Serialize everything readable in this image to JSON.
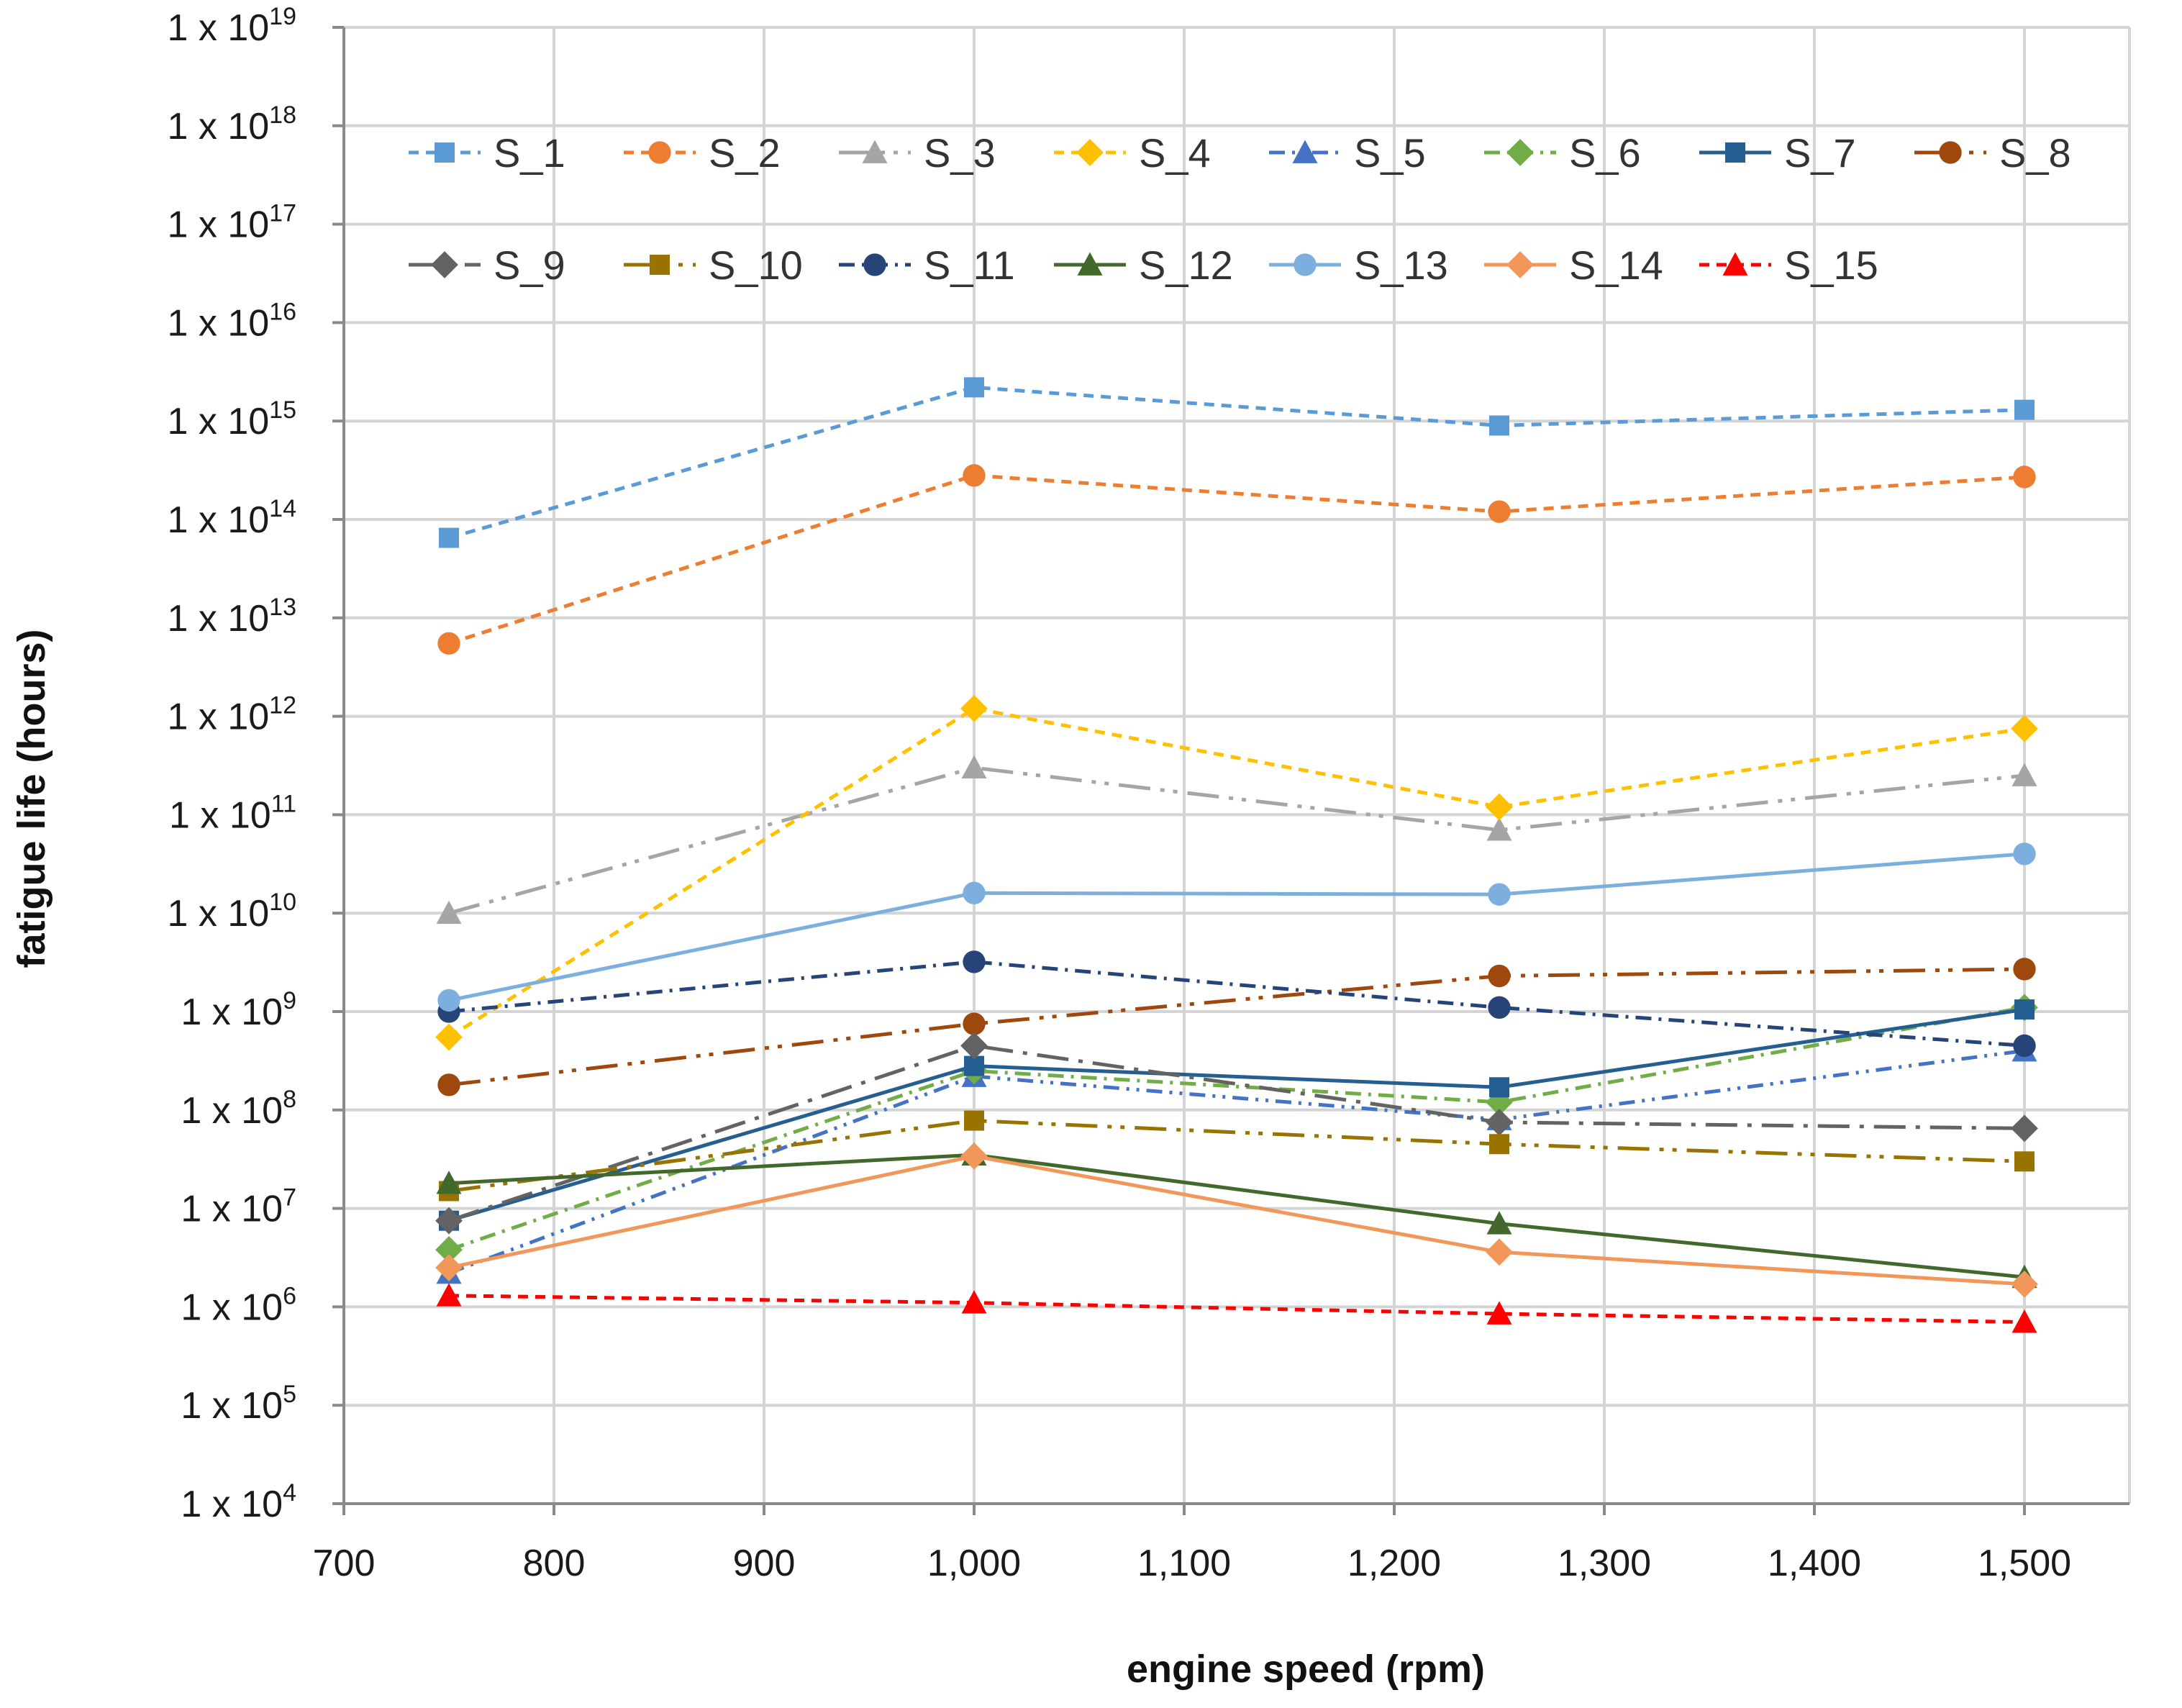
{
  "chart_data": {
    "type": "line",
    "title": "",
    "xlabel": "engine speed (rpm)",
    "ylabel": "fatigue life (hours)",
    "yscale": "log",
    "x": [
      750,
      1000,
      1250,
      1500
    ],
    "xlim": [
      700,
      1550
    ],
    "xticks": [
      700,
      800,
      900,
      1000,
      1100,
      1200,
      1300,
      1400,
      1500
    ],
    "xtick_labels": [
      "700",
      "800",
      "900",
      "1,000",
      "1,100",
      "1,200",
      "1,300",
      "1,400",
      "1,500"
    ],
    "ylim_exponent": [
      4,
      19
    ],
    "ytick_exponents": [
      4,
      5,
      6,
      7,
      8,
      9,
      10,
      11,
      12,
      13,
      14,
      15,
      16,
      17,
      18,
      19
    ],
    "ytick_prefix": "1 x 10",
    "legend_position": "top, inside plot, two rows",
    "series": [
      {
        "name": "S_1",
        "values": [
          65000000000000.0,
          2200000000000000.0,
          900000000000000.0,
          1300000000000000.0
        ],
        "color": "#5B9BD5",
        "dash": "dash",
        "marker": "square"
      },
      {
        "name": "S_2",
        "values": [
          5500000000000.0,
          280000000000000.0,
          120000000000000.0,
          270000000000000.0
        ],
        "color": "#ED7D31",
        "dash": "dash",
        "marker": "circle"
      },
      {
        "name": "S_3",
        "values": [
          10000000000.0,
          300000000000.0,
          70000000000.0,
          250000000000.0
        ],
        "color": "#A5A5A5",
        "dash": "longdashdotdot",
        "marker": "triangle"
      },
      {
        "name": "S_4",
        "values": [
          550000000.0,
          1200000000000.0,
          120000000000.0,
          750000000000.0
        ],
        "color": "#FFC000",
        "dash": "dash",
        "marker": "diamond"
      },
      {
        "name": "S_5",
        "values": [
          2200000.0,
          220000000.0,
          80000000.0,
          400000000.0
        ],
        "color": "#4472C4",
        "dash": "dashdotdot",
        "marker": "triangle"
      },
      {
        "name": "S_6",
        "values": [
          3800000.0,
          250000000.0,
          120000000.0,
          1100000000.0
        ],
        "color": "#70AD47",
        "dash": "dashdot",
        "marker": "diamond"
      },
      {
        "name": "S_7",
        "values": [
          7500000.0,
          280000000.0,
          170000000.0,
          1050000000.0
        ],
        "color": "#255E91",
        "dash": "solid",
        "marker": "square"
      },
      {
        "name": "S_8",
        "values": [
          180000000.0,
          750000000.0,
          2300000000.0,
          2700000000.0
        ],
        "color": "#9E480E",
        "dash": "longdashdotdot",
        "marker": "circle"
      },
      {
        "name": "S_9",
        "values": [
          7500000.0,
          450000000.0,
          75000000.0,
          65000000.0
        ],
        "color": "#636363",
        "dash": "longdashdot",
        "marker": "diamond"
      },
      {
        "name": "S_10",
        "values": [
          15000000.0,
          78000000.0,
          45000000.0,
          30000000.0
        ],
        "color": "#997300",
        "dash": "longdashdotdot",
        "marker": "square"
      },
      {
        "name": "S_11",
        "values": [
          1000000000.0,
          3200000000.0,
          1100000000.0,
          450000000.0
        ],
        "color": "#264478",
        "dash": "dashdot",
        "marker": "circle"
      },
      {
        "name": "S_12",
        "values": [
          18000000.0,
          35000000.0,
          7000000.0,
          2000000.0
        ],
        "color": "#43682B",
        "dash": "solid",
        "marker": "triangle"
      },
      {
        "name": "S_13",
        "values": [
          1300000000.0,
          16000000000.0,
          15500000000.0,
          40000000000.0
        ],
        "color": "#7CAFDD",
        "dash": "solid",
        "marker": "circle"
      },
      {
        "name": "S_14",
        "values": [
          2500000.0,
          34000000.0,
          3600000.0,
          1700000.0
        ],
        "color": "#F1975A",
        "dash": "solid",
        "marker": "diamond"
      },
      {
        "name": "S_15",
        "values": [
          1300000.0,
          1100000.0,
          850000.0,
          700000.0
        ],
        "color": "#FF0000",
        "dash": "dash",
        "marker": "triangle"
      }
    ]
  }
}
